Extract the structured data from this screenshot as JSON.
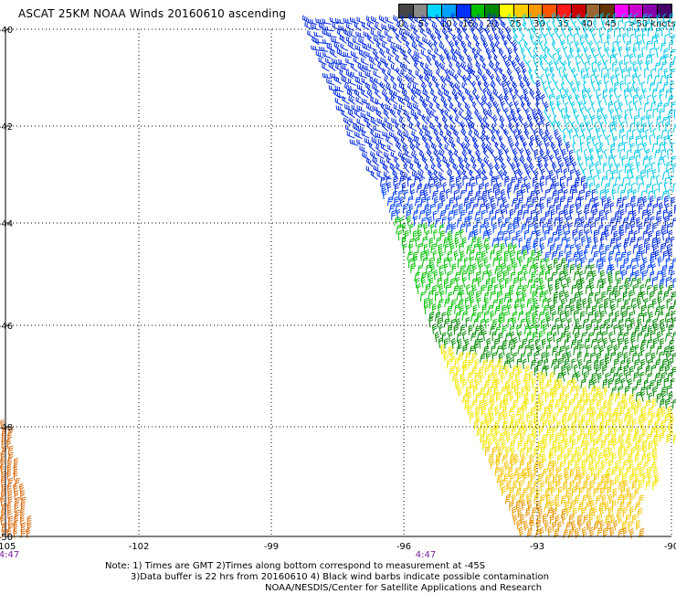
{
  "title": "ASCAT 25KM NOAA Winds 20160610 ascending",
  "legend": {
    "colors": [
      "#444444",
      "#888888",
      "#00d8ff",
      "#00a0ff",
      "#0030ff",
      "#00c000",
      "#008800",
      "#ffff00",
      "#ffcc00",
      "#ff9900",
      "#ff5500",
      "#ff1a1a",
      "#cc0000",
      "#996633",
      "#663300",
      "#ff00ff",
      "#cc00cc",
      "#8800aa",
      "#440066"
    ],
    "labels": [
      "0",
      "5",
      "10",
      "15",
      "20",
      "25",
      "30",
      "35",
      "40",
      "45",
      ">50 knots"
    ]
  },
  "map": {
    "lat_labels": [
      "-40",
      "-42",
      "-44",
      "-46",
      "-48",
      "-50"
    ],
    "lon_labels": [
      "-105",
      "-102",
      "-99",
      "-96",
      "-93",
      "-90"
    ],
    "time_labels": [
      "4:47",
      "4:47"
    ]
  },
  "notes": {
    "line1": "Note: 1) Times are GMT 2)Times along bottom correspond to measurement at -45S",
    "line2": "3)Data buffer is 22 hrs from 20160610 4) Black wind barbs indicate possible contamination",
    "line3": "NOAA/NESDIS/Center for Satellite Applications and Research"
  }
}
